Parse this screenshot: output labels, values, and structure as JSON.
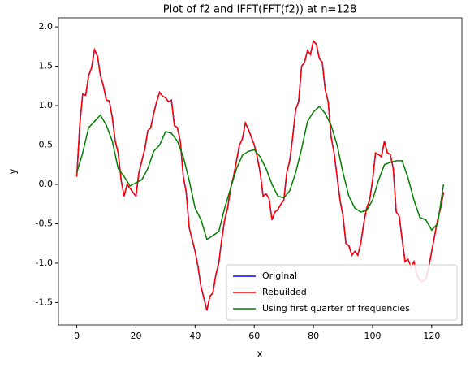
{
  "chart_data": {
    "type": "line",
    "title": "Plot of f2 and IFFT(FFT(f2)) at n=128",
    "x_label": "x",
    "y_label": "y",
    "x": [
      0,
      1,
      2,
      3,
      4,
      5,
      6,
      7,
      8,
      9,
      10,
      11,
      12,
      13,
      14,
      15,
      16,
      17,
      18,
      19,
      20,
      21,
      22,
      23,
      24,
      25,
      26,
      27,
      28,
      29,
      30,
      31,
      32,
      33,
      34,
      35,
      36,
      37,
      38,
      39,
      40,
      41,
      42,
      43,
      44,
      45,
      46,
      47,
      48,
      49,
      50,
      51,
      52,
      53,
      54,
      55,
      56,
      57,
      58,
      59,
      60,
      61,
      62,
      63,
      64,
      65,
      66,
      67,
      68,
      69,
      70,
      71,
      72,
      73,
      74,
      75,
      76,
      77,
      78,
      79,
      80,
      81,
      82,
      83,
      84,
      85,
      86,
      87,
      88,
      89,
      90,
      91,
      92,
      93,
      94,
      95,
      96,
      97,
      98,
      99,
      100,
      101,
      102,
      103,
      104,
      105,
      106,
      107,
      108,
      109,
      110,
      111,
      112,
      113,
      114,
      115,
      116,
      117,
      118,
      119,
      120,
      121,
      122,
      123,
      124
    ],
    "series": [
      {
        "name": "Original",
        "color": "#0000ff",
        "values": [
          0.1,
          0.75,
          1.15,
          1.13,
          1.38,
          1.48,
          1.71,
          1.63,
          1.38,
          1.25,
          1.07,
          1.06,
          0.85,
          0.55,
          0.4,
          0.05,
          -0.15,
          0.0,
          -0.05,
          -0.1,
          -0.15,
          0.15,
          0.3,
          0.45,
          0.68,
          0.72,
          0.9,
          1.05,
          1.17,
          1.12,
          1.1,
          1.05,
          1.07,
          0.75,
          0.72,
          0.55,
          0.1,
          -0.1,
          -0.55,
          -0.7,
          -0.85,
          -1.05,
          -1.3,
          -1.45,
          -1.6,
          -1.42,
          -1.38,
          -1.15,
          -1.0,
          -0.7,
          -0.45,
          -0.3,
          -0.05,
          0.1,
          0.3,
          0.5,
          0.58,
          0.78,
          0.7,
          0.6,
          0.5,
          0.35,
          0.15,
          -0.15,
          -0.12,
          -0.18,
          -0.45,
          -0.35,
          -0.32,
          -0.25,
          -0.2,
          0.15,
          0.3,
          0.6,
          0.95,
          1.05,
          1.5,
          1.55,
          1.7,
          1.65,
          1.82,
          1.78,
          1.6,
          1.55,
          1.2,
          1.05,
          0.6,
          0.4,
          0.1,
          -0.2,
          -0.4,
          -0.75,
          -0.78,
          -0.9,
          -0.85,
          -0.9,
          -0.75,
          -0.5,
          -0.3,
          -0.2,
          0.05,
          0.4,
          0.38,
          0.35,
          0.55,
          0.4,
          0.38,
          0.2,
          -0.35,
          -0.4,
          -0.7,
          -0.98,
          -0.95,
          -1.05,
          -0.98,
          -1.15,
          -1.22,
          -1.23,
          -1.2,
          -1.05,
          -0.85,
          -0.65,
          -0.45,
          -0.3,
          -0.1
        ]
      },
      {
        "name": "Rebuilded",
        "color": "#ff0000",
        "values": [
          0.1,
          0.75,
          1.15,
          1.13,
          1.38,
          1.48,
          1.71,
          1.63,
          1.38,
          1.25,
          1.07,
          1.06,
          0.85,
          0.55,
          0.4,
          0.05,
          -0.15,
          0.0,
          -0.05,
          -0.1,
          -0.15,
          0.15,
          0.3,
          0.45,
          0.68,
          0.72,
          0.9,
          1.05,
          1.17,
          1.12,
          1.1,
          1.05,
          1.07,
          0.75,
          0.72,
          0.55,
          0.1,
          -0.1,
          -0.55,
          -0.7,
          -0.85,
          -1.05,
          -1.3,
          -1.45,
          -1.6,
          -1.42,
          -1.38,
          -1.15,
          -1.0,
          -0.7,
          -0.45,
          -0.3,
          -0.05,
          0.1,
          0.3,
          0.5,
          0.58,
          0.78,
          0.7,
          0.6,
          0.5,
          0.35,
          0.15,
          -0.15,
          -0.12,
          -0.18,
          -0.45,
          -0.35,
          -0.32,
          -0.25,
          -0.2,
          0.15,
          0.3,
          0.6,
          0.95,
          1.05,
          1.5,
          1.55,
          1.7,
          1.65,
          1.82,
          1.78,
          1.6,
          1.55,
          1.2,
          1.05,
          0.6,
          0.4,
          0.1,
          -0.2,
          -0.4,
          -0.75,
          -0.78,
          -0.9,
          -0.85,
          -0.9,
          -0.75,
          -0.5,
          -0.3,
          -0.2,
          0.05,
          0.4,
          0.38,
          0.35,
          0.55,
          0.4,
          0.38,
          0.2,
          -0.35,
          -0.4,
          -0.7,
          -0.98,
          -0.95,
          -1.05,
          -0.98,
          -1.15,
          -1.22,
          -1.23,
          -1.2,
          -1.05,
          -0.85,
          -0.65,
          -0.45,
          -0.3,
          -0.1
        ]
      },
      {
        "name": "Using first quarter of frequencies",
        "color": "#008000",
        "x": [
          0,
          2,
          4,
          6,
          8,
          10,
          12,
          14,
          16,
          18,
          20,
          22,
          24,
          26,
          28,
          30,
          32,
          34,
          36,
          38,
          40,
          42,
          44,
          46,
          48,
          50,
          52,
          54,
          56,
          58,
          60,
          62,
          64,
          66,
          68,
          70,
          72,
          74,
          76,
          78,
          80,
          82,
          84,
          86,
          88,
          90,
          92,
          94,
          96,
          98,
          100,
          102,
          104,
          106,
          108,
          110,
          112,
          114,
          116,
          118,
          120,
          122,
          124
        ],
        "values": [
          0.15,
          0.4,
          0.72,
          0.8,
          0.88,
          0.75,
          0.55,
          0.2,
          0.1,
          -0.02,
          0.02,
          0.06,
          0.2,
          0.42,
          0.5,
          0.67,
          0.65,
          0.55,
          0.35,
          0.05,
          -0.3,
          -0.45,
          -0.7,
          -0.65,
          -0.6,
          -0.3,
          -0.05,
          0.2,
          0.37,
          0.42,
          0.44,
          0.35,
          0.2,
          0.0,
          -0.15,
          -0.17,
          -0.08,
          0.15,
          0.45,
          0.8,
          0.92,
          0.99,
          0.9,
          0.75,
          0.5,
          0.15,
          -0.15,
          -0.3,
          -0.35,
          -0.33,
          -0.2,
          0.05,
          0.25,
          0.28,
          0.3,
          0.3,
          0.08,
          -0.2,
          -0.42,
          -0.45,
          -0.58,
          -0.5,
          0.0
        ]
      }
    ],
    "xlim": [
      -6.2,
      130.2
    ],
    "ylim": [
      -1.785,
      2.115
    ],
    "xticks": [
      0,
      20,
      40,
      60,
      80,
      100,
      120
    ],
    "yticks": [
      -1.5,
      {
        "value": -1.0,
        "label": "-1.0"
      },
      -0.5,
      {
        "value": 0.0,
        "label": "0.0"
      },
      0.5,
      {
        "value": 1.0,
        "label": "1.0"
      },
      1.5,
      {
        "value": 2.0,
        "label": "2.0"
      }
    ],
    "legend": "lower right"
  }
}
